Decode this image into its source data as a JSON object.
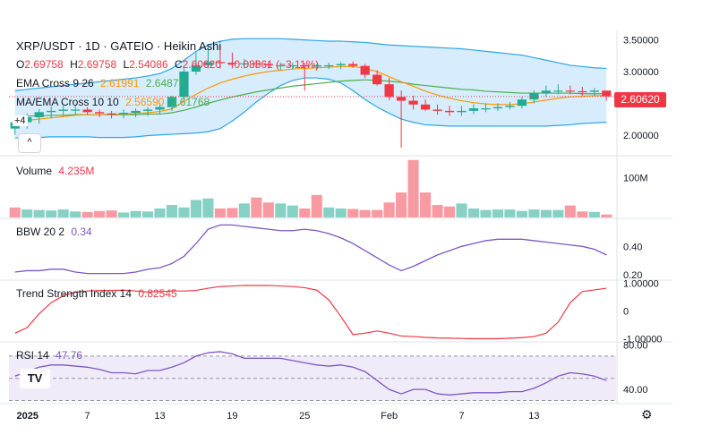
{
  "header": {
    "symbol": "XRP/USDT · 1D · GATEIO · Heikin Ashi",
    "o_label": "O",
    "o_value": "2.69758",
    "h_label": "H",
    "h_value": "2.69758",
    "l_label": "L",
    "l_value": "2.54086",
    "c_label": "C",
    "c_value": "2.60620",
    "change": "−0.08361 (−3.11%)"
  },
  "indicators": {
    "ema": {
      "label": "EMA Cross 9 26",
      "v1": "2.61991",
      "v2": "2.64877"
    },
    "ma": {
      "label": "MA/EMA Cross 10 10",
      "v1": "2.56590",
      "v2": "2.61768"
    },
    "volume": {
      "label": "Volume",
      "value": "4.235M"
    },
    "bbw": {
      "label": "BBW 20 2",
      "value": "0.34"
    },
    "tsi": {
      "label": "Trend Strength Index 14",
      "value": "0.82545"
    },
    "rsi": {
      "label": "RSI 14",
      "value": "47.76"
    }
  },
  "ui": {
    "scroll_label": "^",
    "hidden_count": "+4",
    "logo_text": "TV",
    "settings_icon": "gear-icon"
  },
  "colors": {
    "up": "#22ab94",
    "down": "#f23645",
    "bb": "#2aa6e8",
    "ema_fast": "#ff9800",
    "ema_slow": "#4caf50",
    "bbw": "#7e57c2",
    "tsi": "#f23645",
    "rsi": "#7e57c2"
  },
  "chart_data": [
    {
      "type": "candlestick",
      "title": "XRP/USDT · 1D · GATEIO · Heikin Ashi",
      "x": [
        "2025-01-01",
        "2025-01-02",
        "2025-01-03",
        "2025-01-04",
        "2025-01-05",
        "2025-01-06",
        "2025-01-07",
        "2025-01-08",
        "2025-01-09",
        "2025-01-10",
        "2025-01-11",
        "2025-01-12",
        "2025-01-13",
        "2025-01-14",
        "2025-01-15",
        "2025-01-16",
        "2025-01-17",
        "2025-01-18",
        "2025-01-19",
        "2025-01-20",
        "2025-01-21",
        "2025-01-22",
        "2025-01-23",
        "2025-01-24",
        "2025-01-25",
        "2025-01-26",
        "2025-01-27",
        "2025-01-28",
        "2025-01-29",
        "2025-01-30",
        "2025-01-31",
        "2025-02-01",
        "2025-02-02",
        "2025-02-03",
        "2025-02-04",
        "2025-02-05",
        "2025-02-06",
        "2025-02-07",
        "2025-02-08",
        "2025-02-09",
        "2025-02-10",
        "2025-02-11",
        "2025-02-12",
        "2025-02-13",
        "2025-02-14",
        "2025-02-15",
        "2025-02-16",
        "2025-02-17",
        "2025-02-18",
        "2025-02-19"
      ],
      "open": [
        2.1,
        2.2,
        2.28,
        2.36,
        2.38,
        2.4,
        2.4,
        2.36,
        2.34,
        2.33,
        2.35,
        2.38,
        2.4,
        2.44,
        2.6,
        3.0,
        3.1,
        3.15,
        3.14,
        3.12,
        3.13,
        3.12,
        3.1,
        3.1,
        3.1,
        3.08,
        3.1,
        3.1,
        3.12,
        3.09,
        2.95,
        2.8,
        2.6,
        2.54,
        2.48,
        2.4,
        2.38,
        2.36,
        2.38,
        2.42,
        2.42,
        2.44,
        2.46,
        2.56,
        2.66,
        2.7,
        2.7,
        2.69,
        2.68,
        2.7
      ],
      "high": [
        2.25,
        2.34,
        2.41,
        2.45,
        2.46,
        2.48,
        2.44,
        2.4,
        2.38,
        2.4,
        2.42,
        2.44,
        2.5,
        2.62,
        3.05,
        3.3,
        3.38,
        3.4,
        3.3,
        3.2,
        3.18,
        3.15,
        3.14,
        3.14,
        3.14,
        3.12,
        3.14,
        3.15,
        3.16,
        3.12,
        3.02,
        2.9,
        2.7,
        2.62,
        2.56,
        2.48,
        2.46,
        2.46,
        2.48,
        2.5,
        2.5,
        2.52,
        2.6,
        2.7,
        2.78,
        2.8,
        2.78,
        2.76,
        2.74,
        2.7
      ],
      "low": [
        2.0,
        2.1,
        2.18,
        2.26,
        2.3,
        2.32,
        2.32,
        2.28,
        2.26,
        2.26,
        2.28,
        2.3,
        2.32,
        2.38,
        2.55,
        2.95,
        3.05,
        3.05,
        3.05,
        3.05,
        3.06,
        3.05,
        3.02,
        3.04,
        2.7,
        3.02,
        3.04,
        3.04,
        3.06,
        2.9,
        2.78,
        2.55,
        1.8,
        2.4,
        2.38,
        2.32,
        2.3,
        2.3,
        2.33,
        2.36,
        2.38,
        2.4,
        2.42,
        2.5,
        2.6,
        2.64,
        2.64,
        2.62,
        2.62,
        2.54
      ],
      "close": [
        2.2,
        2.28,
        2.36,
        2.38,
        2.4,
        2.4,
        2.36,
        2.34,
        2.33,
        2.35,
        2.38,
        2.4,
        2.44,
        2.6,
        3.0,
        3.1,
        3.15,
        3.14,
        3.12,
        3.13,
        3.12,
        3.1,
        3.1,
        3.1,
        3.08,
        3.1,
        3.1,
        3.12,
        3.09,
        2.95,
        2.8,
        2.6,
        2.54,
        2.48,
        2.4,
        2.38,
        2.36,
        2.38,
        2.42,
        2.42,
        2.44,
        2.46,
        2.56,
        2.66,
        2.7,
        2.7,
        2.69,
        2.68,
        2.7,
        2.61
      ],
      "bb_upper": [
        2.7,
        2.72,
        2.74,
        2.76,
        2.78,
        2.8,
        2.82,
        2.84,
        2.86,
        2.88,
        2.9,
        2.93,
        2.97,
        3.05,
        3.18,
        3.32,
        3.42,
        3.48,
        3.51,
        3.52,
        3.52,
        3.52,
        3.52,
        3.51,
        3.5,
        3.49,
        3.48,
        3.48,
        3.47,
        3.46,
        3.44,
        3.42,
        3.41,
        3.4,
        3.39,
        3.38,
        3.37,
        3.36,
        3.34,
        3.32,
        3.3,
        3.28,
        3.26,
        3.22,
        3.18,
        3.14,
        3.1,
        3.08,
        3.06,
        3.05
      ],
      "bb_lower": [
        1.95,
        1.96,
        1.96,
        1.97,
        1.97,
        1.97,
        1.97,
        1.96,
        1.96,
        1.96,
        1.97,
        1.99,
        2.0,
        2.01,
        2.02,
        2.03,
        2.05,
        2.1,
        2.22,
        2.36,
        2.52,
        2.66,
        2.78,
        2.86,
        2.9,
        2.9,
        2.88,
        2.82,
        2.7,
        2.56,
        2.44,
        2.34,
        2.25,
        2.2,
        2.16,
        2.15,
        2.14,
        2.14,
        2.14,
        2.14,
        2.14,
        2.14,
        2.14,
        2.14,
        2.14,
        2.15,
        2.16,
        2.18,
        2.19,
        2.2
      ],
      "ema_fast": [
        2.22,
        2.23,
        2.25,
        2.27,
        2.29,
        2.31,
        2.32,
        2.32,
        2.33,
        2.33,
        2.34,
        2.35,
        2.37,
        2.41,
        2.53,
        2.64,
        2.74,
        2.82,
        2.88,
        2.93,
        2.97,
        3.0,
        3.02,
        3.04,
        3.05,
        3.06,
        3.07,
        3.08,
        3.08,
        3.05,
        3.0,
        2.92,
        2.84,
        2.77,
        2.69,
        2.63,
        2.58,
        2.54,
        2.51,
        2.49,
        2.48,
        2.48,
        2.49,
        2.52,
        2.55,
        2.58,
        2.6,
        2.61,
        2.62,
        2.62
      ],
      "ema_slow": [
        2.3,
        2.3,
        2.3,
        2.31,
        2.31,
        2.32,
        2.32,
        2.32,
        2.32,
        2.32,
        2.32,
        2.33,
        2.33,
        2.35,
        2.39,
        2.44,
        2.5,
        2.55,
        2.6,
        2.64,
        2.68,
        2.71,
        2.74,
        2.77,
        2.79,
        2.81,
        2.83,
        2.85,
        2.86,
        2.87,
        2.86,
        2.85,
        2.83,
        2.8,
        2.78,
        2.76,
        2.74,
        2.72,
        2.71,
        2.69,
        2.68,
        2.67,
        2.66,
        2.66,
        2.66,
        2.66,
        2.66,
        2.65,
        2.65,
        2.65
      ],
      "y_ticks": [
        "3.50000",
        "3.00000",
        "2.50000",
        "2.00000"
      ],
      "ylim": [
        1.7,
        3.65
      ],
      "last_price": "2.60620"
    },
    {
      "type": "bar",
      "title": "Volume",
      "values": [
        2.0,
        1.6,
        1.5,
        1.4,
        1.6,
        1.2,
        1.1,
        1.3,
        1.4,
        1.0,
        1.3,
        1.2,
        1.8,
        2.5,
        2.0,
        3.5,
        3.8,
        1.8,
        1.9,
        2.8,
        4.0,
        3.0,
        2.8,
        2.4,
        1.8,
        4.5,
        2.0,
        1.8,
        1.7,
        1.5,
        1.5,
        3.0,
        5.0,
        11.5,
        5.0,
        2.5,
        2.2,
        2.8,
        1.8,
        1.5,
        1.6,
        1.6,
        1.3,
        1.6,
        1.5,
        1.5,
        2.4,
        1.2,
        1.1,
        0.6
      ],
      "direction": [
        "d",
        "u",
        "u",
        "u",
        "u",
        "u",
        "d",
        "d",
        "d",
        "u",
        "u",
        "u",
        "u",
        "u",
        "u",
        "u",
        "u",
        "d",
        "d",
        "u",
        "d",
        "d",
        "u",
        "u",
        "d",
        "d",
        "u",
        "u",
        "d",
        "d",
        "d",
        "d",
        "d",
        "d",
        "d",
        "d",
        "d",
        "u",
        "u",
        "u",
        "u",
        "u",
        "u",
        "u",
        "u",
        "u",
        "d",
        "d",
        "u",
        "d"
      ],
      "y_ticks": [
        "100M"
      ],
      "ylim": [
        0,
        12
      ]
    },
    {
      "type": "line",
      "title": "BBW 20 2",
      "values": [
        0.22,
        0.23,
        0.23,
        0.24,
        0.24,
        0.22,
        0.21,
        0.21,
        0.21,
        0.21,
        0.22,
        0.24,
        0.25,
        0.28,
        0.33,
        0.42,
        0.52,
        0.55,
        0.55,
        0.54,
        0.53,
        0.52,
        0.51,
        0.51,
        0.52,
        0.51,
        0.49,
        0.46,
        0.42,
        0.37,
        0.32,
        0.27,
        0.23,
        0.26,
        0.3,
        0.34,
        0.37,
        0.4,
        0.42,
        0.44,
        0.45,
        0.45,
        0.45,
        0.44,
        0.43,
        0.42,
        0.41,
        0.4,
        0.38,
        0.34
      ],
      "y_ticks": [
        "0.40",
        "0.20"
      ],
      "ylim": [
        0.17,
        0.59
      ]
    },
    {
      "type": "line",
      "title": "Trend Strength Index 14",
      "values": [
        -0.8,
        -0.6,
        -0.1,
        0.3,
        0.55,
        0.68,
        0.72,
        0.74,
        0.74,
        0.75,
        0.72,
        0.68,
        0.7,
        0.72,
        0.72,
        0.74,
        0.82,
        0.88,
        0.9,
        0.92,
        0.92,
        0.92,
        0.9,
        0.88,
        0.84,
        0.75,
        0.4,
        -0.2,
        -0.85,
        -0.8,
        -0.72,
        -0.8,
        -0.9,
        -0.92,
        -0.95,
        -0.97,
        -0.98,
        -0.99,
        -1.0,
        -1.0,
        -1.0,
        -0.98,
        -0.96,
        -0.92,
        -0.8,
        -0.4,
        0.3,
        0.7,
        0.76,
        0.82
      ],
      "y_ticks": [
        "1.00000",
        "0",
        "-1.00000"
      ],
      "ylim": [
        -1.08,
        1.08
      ]
    },
    {
      "type": "line",
      "title": "RSI 14",
      "values": [
        52,
        56,
        60,
        62,
        62,
        61,
        60,
        58,
        55,
        55,
        54,
        57,
        57,
        60,
        64,
        70,
        73,
        74,
        72,
        68,
        68,
        68,
        68,
        66,
        64,
        62,
        61,
        62,
        60,
        56,
        48,
        40,
        36,
        40,
        40,
        36,
        35,
        36,
        37,
        37,
        37,
        38,
        38,
        41,
        46,
        52,
        55,
        54,
        52,
        48
      ],
      "levels": [
        70,
        50,
        30
      ],
      "y_ticks": [
        "80.00",
        "40.00"
      ],
      "ylim": [
        28,
        82
      ]
    }
  ],
  "x_axis": {
    "ticks": [
      "2025",
      "7",
      "13",
      "19",
      "25",
      "Feb",
      "7",
      "13"
    ]
  }
}
